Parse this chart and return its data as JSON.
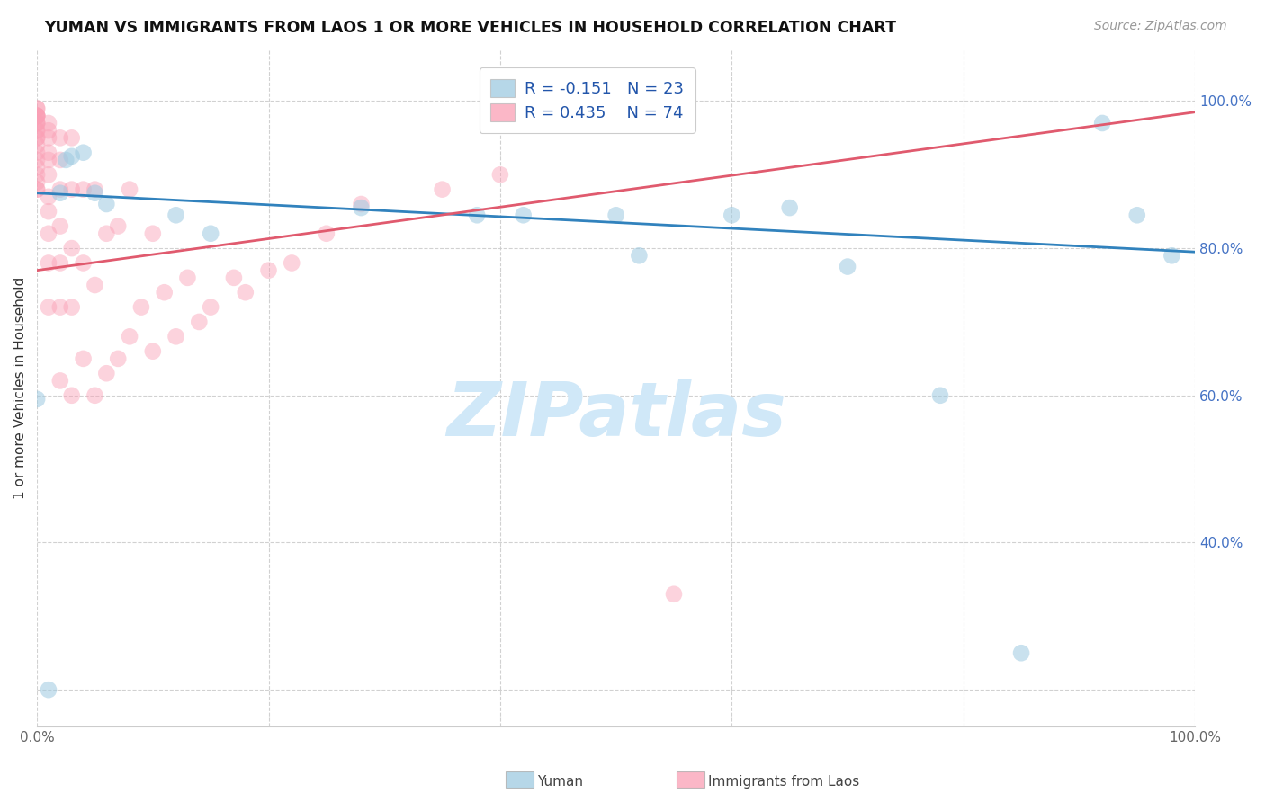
{
  "title": "YUMAN VS IMMIGRANTS FROM LAOS 1 OR MORE VEHICLES IN HOUSEHOLD CORRELATION CHART",
  "source_text": "Source: ZipAtlas.com",
  "ylabel": "1 or more Vehicles in Household",
  "R_blue": -0.151,
  "N_blue": 23,
  "R_pink": 0.435,
  "N_pink": 74,
  "blue_color": "#9ecae1",
  "pink_color": "#fa9fb5",
  "blue_line_color": "#3182bd",
  "pink_line_color": "#e05a6e",
  "watermark_color": "#d0e8f8",
  "xlim": [
    0.0,
    1.0
  ],
  "ylim": [
    0.15,
    1.07
  ],
  "ytick_positions": [
    0.2,
    0.4,
    0.6,
    0.8,
    1.0
  ],
  "ytick_labels": [
    "",
    "40.0%",
    "60.0%",
    "80.0%",
    "100.0%"
  ],
  "xtick_positions": [
    0.0,
    0.2,
    0.4,
    0.6,
    0.8,
    1.0
  ],
  "xtick_labels": [
    "0.0%",
    "",
    "",
    "",
    "",
    "100.0%"
  ],
  "blue_trend_start": 0.875,
  "blue_trend_end": 0.795,
  "pink_trend_start": 0.77,
  "pink_trend_end": 0.985,
  "blue_x": [
    0.0,
    0.01,
    0.02,
    0.025,
    0.03,
    0.04,
    0.05,
    0.06,
    0.12,
    0.15,
    0.28,
    0.38,
    0.42,
    0.5,
    0.52,
    0.6,
    0.65,
    0.7,
    0.78,
    0.85,
    0.92,
    0.95,
    0.98
  ],
  "blue_y": [
    0.595,
    0.2,
    0.875,
    0.92,
    0.925,
    0.93,
    0.875,
    0.86,
    0.845,
    0.82,
    0.855,
    0.845,
    0.845,
    0.845,
    0.79,
    0.845,
    0.855,
    0.775,
    0.6,
    0.25,
    0.97,
    0.845,
    0.79
  ],
  "pink_x": [
    0.0,
    0.0,
    0.0,
    0.0,
    0.0,
    0.0,
    0.0,
    0.0,
    0.0,
    0.0,
    0.0,
    0.0,
    0.0,
    0.0,
    0.0,
    0.0,
    0.0,
    0.0,
    0.0,
    0.0,
    0.0,
    0.0,
    0.01,
    0.01,
    0.01,
    0.01,
    0.01,
    0.01,
    0.01,
    0.01,
    0.01,
    0.01,
    0.01,
    0.02,
    0.02,
    0.02,
    0.02,
    0.02,
    0.02,
    0.02,
    0.03,
    0.03,
    0.03,
    0.03,
    0.03,
    0.04,
    0.04,
    0.04,
    0.05,
    0.05,
    0.05,
    0.06,
    0.06,
    0.07,
    0.07,
    0.08,
    0.08,
    0.09,
    0.1,
    0.1,
    0.11,
    0.12,
    0.13,
    0.14,
    0.15,
    0.17,
    0.18,
    0.2,
    0.22,
    0.25,
    0.28,
    0.35,
    0.4,
    0.55
  ],
  "pink_y": [
    0.88,
    0.88,
    0.89,
    0.9,
    0.91,
    0.92,
    0.93,
    0.94,
    0.95,
    0.95,
    0.96,
    0.96,
    0.97,
    0.97,
    0.97,
    0.98,
    0.98,
    0.98,
    0.98,
    0.98,
    0.99,
    0.99,
    0.72,
    0.78,
    0.82,
    0.85,
    0.87,
    0.9,
    0.92,
    0.93,
    0.95,
    0.96,
    0.97,
    0.62,
    0.72,
    0.78,
    0.83,
    0.88,
    0.92,
    0.95,
    0.6,
    0.72,
    0.8,
    0.88,
    0.95,
    0.65,
    0.78,
    0.88,
    0.6,
    0.75,
    0.88,
    0.63,
    0.82,
    0.65,
    0.83,
    0.68,
    0.88,
    0.72,
    0.66,
    0.82,
    0.74,
    0.68,
    0.76,
    0.7,
    0.72,
    0.76,
    0.74,
    0.77,
    0.78,
    0.82,
    0.86,
    0.88,
    0.9,
    0.33
  ]
}
